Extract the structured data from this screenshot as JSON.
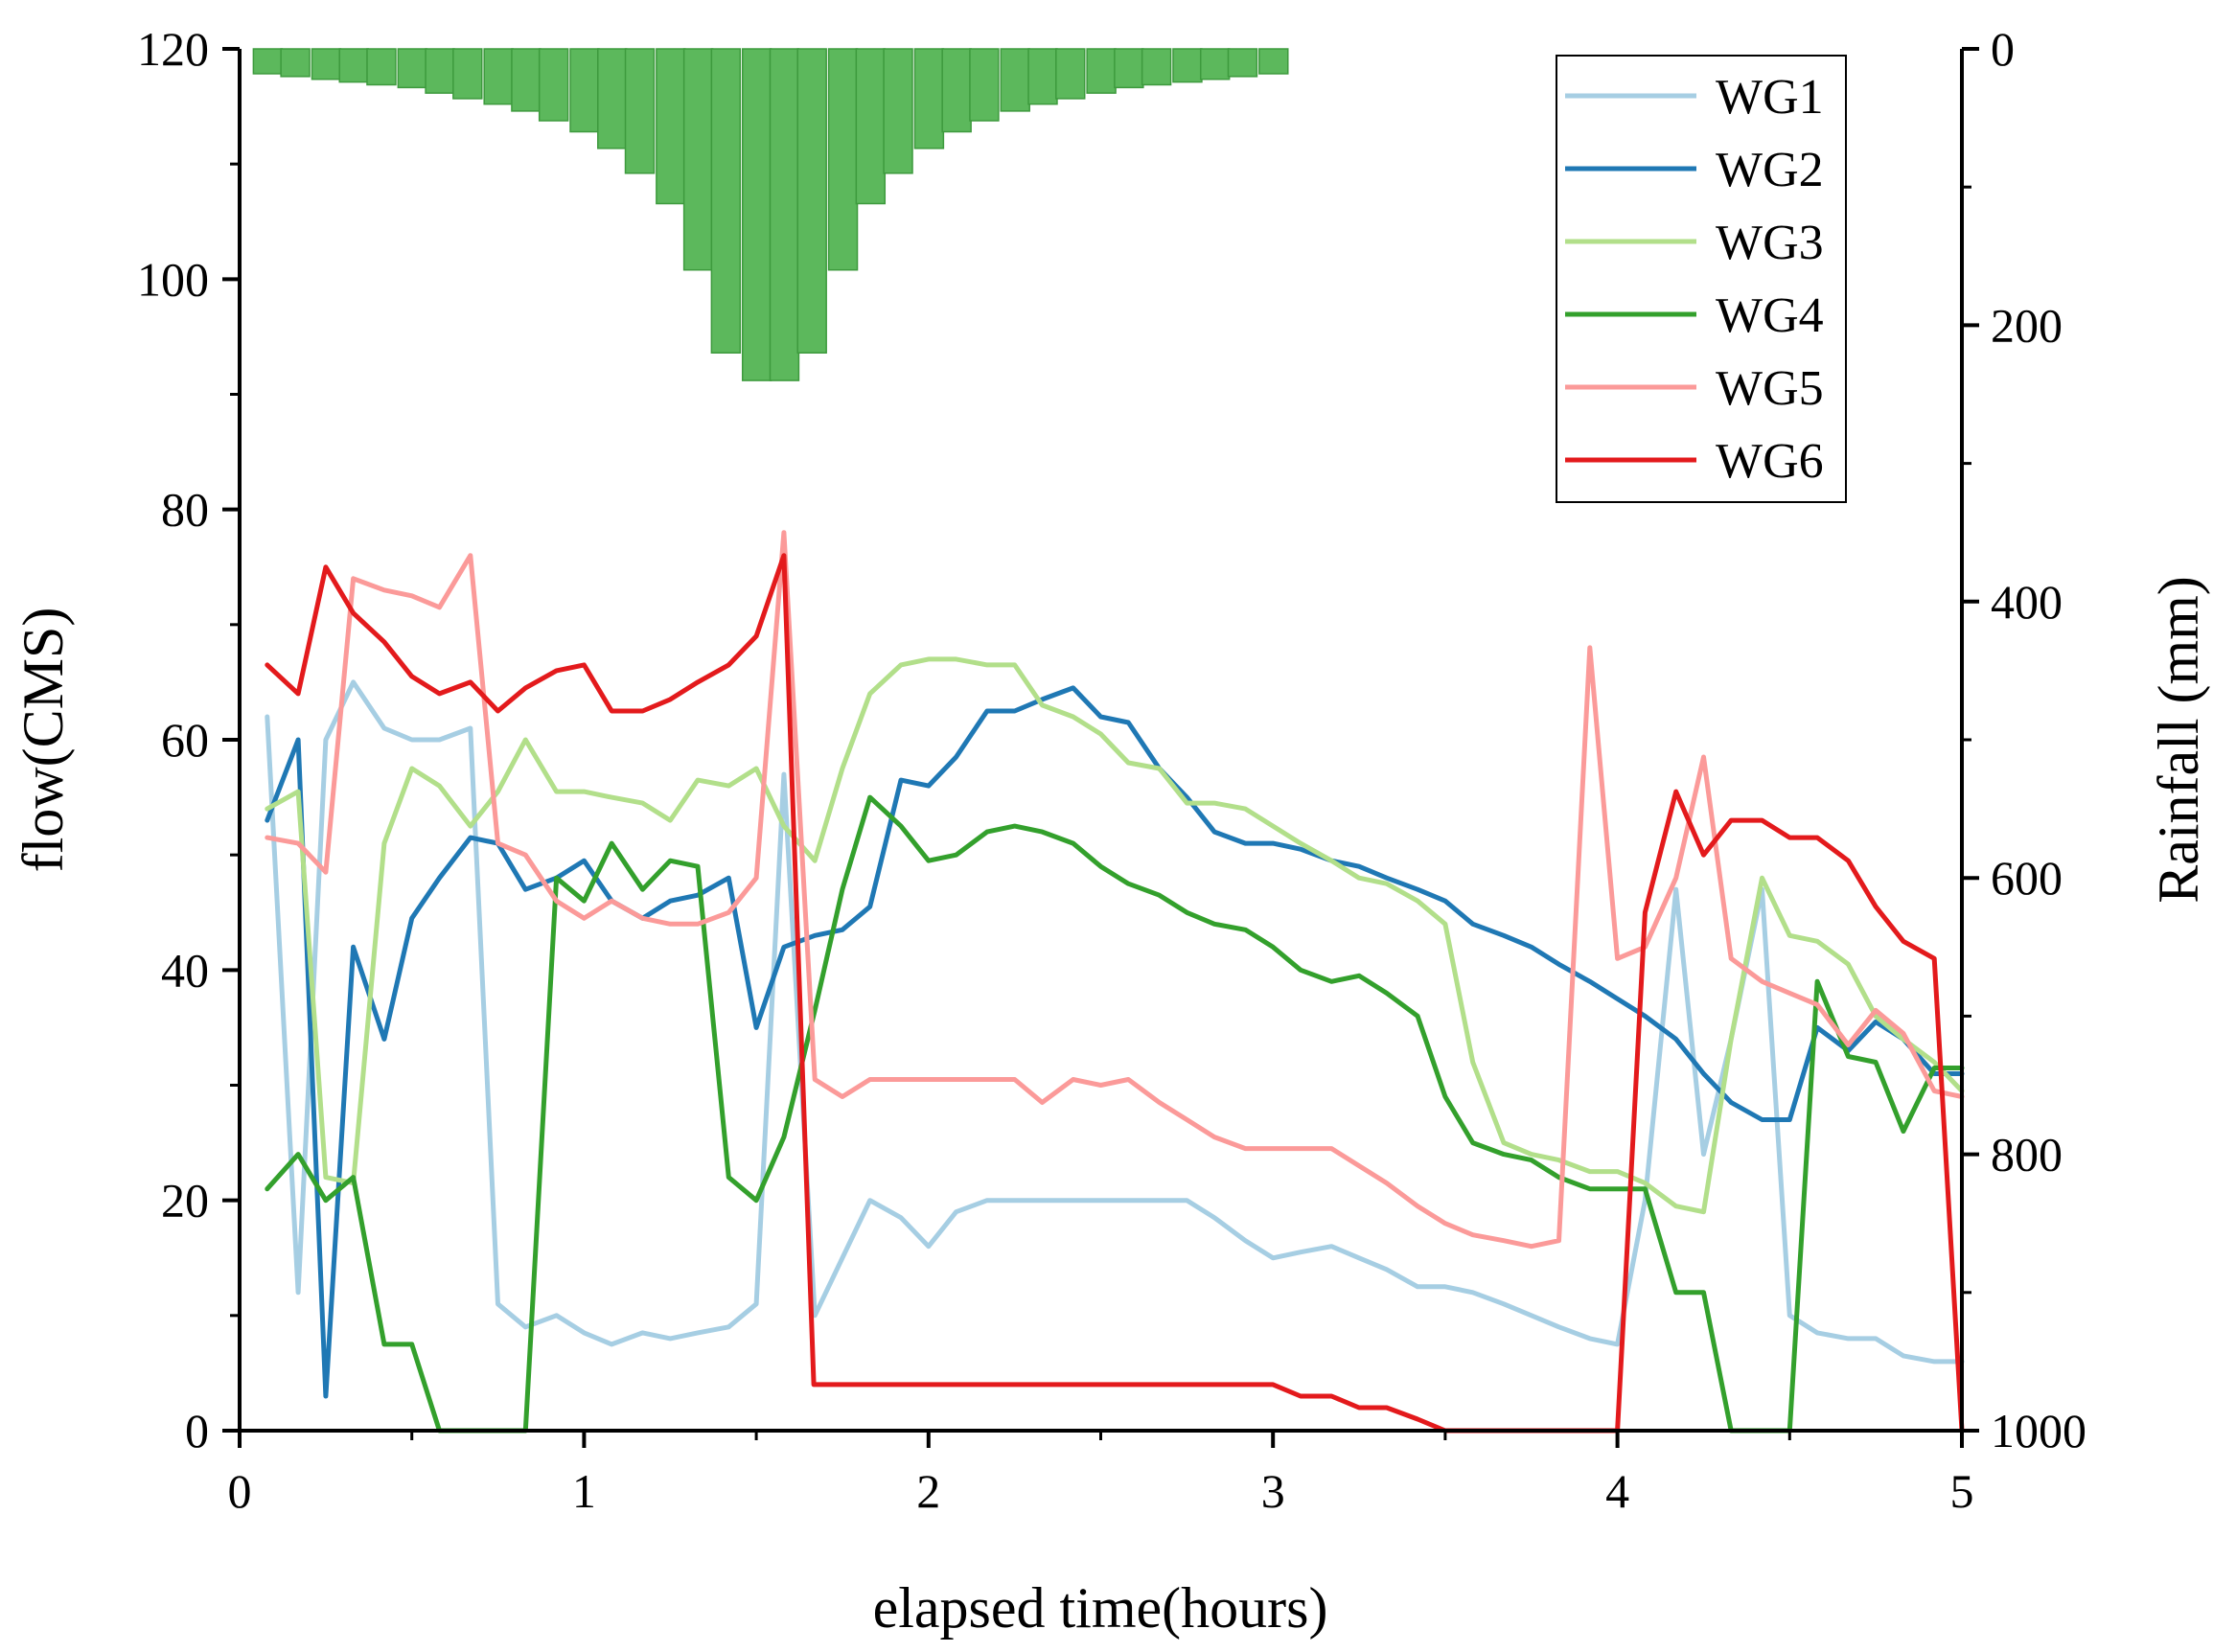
{
  "chart_data": {
    "type": "line",
    "title": "",
    "xlabel": "elapsed time(hours)",
    "ylabel": "flow(CMS)",
    "y2label": "Rainfall (mm)",
    "xlim": [
      0,
      5
    ],
    "ylim": [
      0,
      120
    ],
    "y2lim": [
      0,
      1000
    ],
    "y2_inverted": true,
    "xticks": [
      0,
      1,
      2,
      3,
      4,
      5
    ],
    "yticks": [
      0,
      20,
      40,
      60,
      80,
      100,
      120
    ],
    "y2ticks": [
      0,
      200,
      400,
      600,
      800,
      1000
    ],
    "legend_position": "top-right",
    "series": [
      {
        "name": "WG1",
        "color": "#a6cee3",
        "x": [
          0.08,
          0.17,
          0.25,
          0.33,
          0.42,
          0.5,
          0.58,
          0.67,
          0.75,
          0.83,
          0.92,
          1.0,
          1.08,
          1.17,
          1.25,
          1.33,
          1.42,
          1.5,
          1.58,
          1.67,
          1.75,
          1.83,
          1.92,
          2.0,
          2.08,
          2.17,
          2.25,
          2.33,
          2.42,
          2.5,
          2.58,
          2.67,
          2.75,
          2.83,
          2.92,
          3.0,
          3.08,
          3.17,
          3.25,
          3.33,
          3.42,
          3.5,
          3.58,
          3.67,
          3.75,
          3.83,
          3.92,
          4.0,
          4.08,
          4.17,
          4.25,
          4.33,
          4.42,
          4.5,
          4.58,
          4.67,
          4.75,
          4.83,
          4.92,
          5.0
        ],
        "y": [
          62,
          12,
          60,
          65,
          61,
          60,
          60,
          61,
          11,
          9,
          10,
          8.5,
          7.5,
          8.5,
          8,
          8.5,
          9,
          11,
          57,
          10,
          15,
          20,
          18.5,
          16,
          19,
          20,
          20,
          20,
          20,
          20,
          20,
          20,
          20,
          18.5,
          16.5,
          15,
          15.5,
          16,
          15,
          14,
          12.5,
          12.5,
          12,
          11,
          10,
          9,
          8,
          7.5,
          20,
          47,
          24,
          34,
          47,
          10,
          8.5,
          8,
          8,
          6.5,
          6,
          6
        ]
      },
      {
        "name": "WG2",
        "color": "#1f78b4",
        "x": [
          0.08,
          0.17,
          0.25,
          0.33,
          0.42,
          0.5,
          0.58,
          0.67,
          0.75,
          0.83,
          0.92,
          1.0,
          1.08,
          1.17,
          1.25,
          1.33,
          1.42,
          1.5,
          1.58,
          1.67,
          1.75,
          1.83,
          1.92,
          2.0,
          2.08,
          2.17,
          2.25,
          2.33,
          2.42,
          2.5,
          2.58,
          2.67,
          2.75,
          2.83,
          2.92,
          3.0,
          3.08,
          3.17,
          3.25,
          3.33,
          3.42,
          3.5,
          3.58,
          3.67,
          3.75,
          3.83,
          3.92,
          4.0,
          4.08,
          4.17,
          4.25,
          4.33,
          4.42,
          4.5,
          4.58,
          4.67,
          4.75,
          4.83,
          4.92,
          5.0
        ],
        "y": [
          53,
          60,
          3,
          42,
          34,
          44.5,
          48,
          51.5,
          51,
          47,
          48,
          49.5,
          46,
          44.5,
          46,
          46.5,
          48,
          35,
          42,
          43,
          43.5,
          45.5,
          56.5,
          56,
          58.5,
          62.5,
          62.5,
          63.5,
          64.5,
          62,
          61.5,
          57.5,
          55,
          52,
          51,
          51,
          50.5,
          49.5,
          49,
          48,
          47,
          46,
          44,
          43,
          42,
          40.5,
          39,
          37.5,
          36,
          34,
          31,
          28.5,
          27,
          27,
          35,
          33,
          35.5,
          34,
          31,
          31
        ]
      },
      {
        "name": "WG3",
        "color": "#b2df8a",
        "x": [
          0.08,
          0.17,
          0.25,
          0.33,
          0.42,
          0.5,
          0.58,
          0.67,
          0.75,
          0.83,
          0.92,
          1.0,
          1.08,
          1.17,
          1.25,
          1.33,
          1.42,
          1.5,
          1.58,
          1.67,
          1.75,
          1.83,
          1.92,
          2.0,
          2.08,
          2.17,
          2.25,
          2.33,
          2.42,
          2.5,
          2.58,
          2.67,
          2.75,
          2.83,
          2.92,
          3.0,
          3.08,
          3.17,
          3.25,
          3.33,
          3.42,
          3.5,
          3.58,
          3.67,
          3.75,
          3.83,
          3.92,
          4.0,
          4.08,
          4.17,
          4.25,
          4.33,
          4.42,
          4.5,
          4.58,
          4.67,
          4.75,
          4.83,
          4.92,
          5.0
        ],
        "y": [
          54,
          55.5,
          22,
          21.5,
          51,
          57.5,
          56,
          52.5,
          55.5,
          60,
          55.5,
          55.5,
          55,
          54.5,
          53,
          56.5,
          56,
          57.5,
          52.5,
          49.5,
          57.5,
          64,
          66.5,
          67,
          67,
          66.5,
          66.5,
          63,
          62,
          60.5,
          58,
          57.5,
          54.5,
          54.5,
          54,
          52.5,
          51,
          49.5,
          48,
          47.5,
          46,
          44,
          32,
          25,
          24,
          23.5,
          22.5,
          22.5,
          21.5,
          19.5,
          19,
          34,
          48,
          43,
          42.5,
          40.5,
          36,
          34,
          32,
          29.5
        ]
      },
      {
        "name": "WG4",
        "color": "#33a02c",
        "x": [
          0.08,
          0.17,
          0.25,
          0.33,
          0.42,
          0.5,
          0.58,
          0.67,
          0.75,
          0.83,
          0.92,
          1.0,
          1.08,
          1.17,
          1.25,
          1.33,
          1.42,
          1.5,
          1.58,
          1.67,
          1.75,
          1.83,
          1.92,
          2.0,
          2.08,
          2.17,
          2.25,
          2.33,
          2.42,
          2.5,
          2.58,
          2.67,
          2.75,
          2.83,
          2.92,
          3.0,
          3.08,
          3.17,
          3.25,
          3.33,
          3.42,
          3.5,
          3.58,
          3.67,
          3.75,
          3.83,
          3.92,
          4.0,
          4.08,
          4.17,
          4.25,
          4.33,
          4.42,
          4.5,
          4.58,
          4.67,
          4.75,
          4.83,
          4.92,
          5.0
        ],
        "y": [
          21,
          24,
          20,
          22,
          7.5,
          7.5,
          0,
          0,
          0,
          0,
          48,
          46,
          51,
          47,
          49.5,
          49,
          22,
          20,
          25.5,
          36.5,
          47,
          55,
          52.5,
          49.5,
          50,
          52,
          52.5,
          52,
          51,
          49,
          47.5,
          46.5,
          45,
          44,
          43.5,
          42,
          40,
          39,
          39.5,
          38,
          36,
          29,
          25,
          24,
          23.5,
          22,
          21,
          21,
          21,
          12,
          12,
          0,
          0,
          0,
          39,
          32.5,
          32,
          26,
          31.5,
          31.5
        ]
      },
      {
        "name": "WG5",
        "color": "#fb9a99",
        "x": [
          0.08,
          0.17,
          0.25,
          0.33,
          0.42,
          0.5,
          0.58,
          0.67,
          0.75,
          0.83,
          0.92,
          1.0,
          1.08,
          1.17,
          1.25,
          1.33,
          1.42,
          1.5,
          1.58,
          1.67,
          1.75,
          1.83,
          1.92,
          2.0,
          2.08,
          2.17,
          2.25,
          2.33,
          2.42,
          2.5,
          2.58,
          2.67,
          2.75,
          2.83,
          2.92,
          3.0,
          3.08,
          3.17,
          3.25,
          3.33,
          3.42,
          3.5,
          3.58,
          3.67,
          3.75,
          3.83,
          3.92,
          4.0,
          4.08,
          4.17,
          4.25,
          4.33,
          4.42,
          4.5,
          4.58,
          4.67,
          4.75,
          4.83,
          4.92,
          5.0
        ],
        "y": [
          51.5,
          51,
          48.5,
          74,
          73,
          72.5,
          71.5,
          76,
          51,
          50,
          46,
          44.5,
          46,
          44.5,
          44,
          44,
          45,
          48,
          78,
          30.5,
          29,
          30.5,
          30.5,
          30.5,
          30.5,
          30.5,
          30.5,
          28.5,
          30.5,
          30,
          30.5,
          28.5,
          27,
          25.5,
          24.5,
          24.5,
          24.5,
          24.5,
          23,
          21.5,
          19.5,
          18,
          17,
          16.5,
          16,
          16.5,
          68,
          41,
          42,
          48,
          58.5,
          41,
          39,
          38,
          37,
          33.5,
          36.5,
          34.5,
          29.5,
          29
        ]
      },
      {
        "name": "WG6",
        "color": "#e31a1c",
        "x": [
          0.08,
          0.17,
          0.25,
          0.33,
          0.42,
          0.5,
          0.58,
          0.67,
          0.75,
          0.83,
          0.92,
          1.0,
          1.08,
          1.17,
          1.25,
          1.33,
          1.42,
          1.5,
          1.58,
          1.667,
          1.75,
          1.83,
          1.92,
          2.0,
          2.08,
          2.17,
          2.25,
          2.33,
          2.42,
          2.5,
          2.58,
          2.67,
          2.75,
          2.83,
          2.92,
          3.0,
          3.08,
          3.17,
          3.25,
          3.33,
          3.42,
          3.5,
          3.58,
          3.67,
          3.75,
          3.83,
          3.92,
          4.0,
          4.08,
          4.17,
          4.25,
          4.33,
          4.42,
          4.5,
          4.58,
          4.67,
          4.75,
          4.83,
          4.92,
          5.0
        ],
        "y": [
          66.5,
          64,
          75,
          71,
          68.5,
          65.5,
          64,
          65,
          62.5,
          64.5,
          66,
          66.5,
          62.5,
          62.5,
          63.5,
          65,
          66.5,
          69,
          76,
          4,
          4,
          4,
          4,
          4,
          4,
          4,
          4,
          4,
          4,
          4,
          4,
          4,
          4,
          4,
          4,
          4,
          3,
          3,
          2,
          2,
          1,
          0,
          0,
          0,
          0,
          0,
          0,
          0,
          45,
          55.5,
          50,
          53,
          53,
          51.5,
          51.5,
          49.5,
          45.5,
          42.5,
          41,
          0
        ]
      }
    ],
    "rainfall": {
      "name": "Rainfall",
      "color": "#5cb85c",
      "axis": "right",
      "x_start": [
        0.04,
        0.12,
        0.21,
        0.29,
        0.37,
        0.46,
        0.54,
        0.62,
        0.71,
        0.79,
        0.87,
        0.96,
        1.04,
        1.12,
        1.21,
        1.29,
        1.37,
        1.46,
        1.54,
        1.62,
        1.71,
        1.79,
        1.87,
        1.96,
        2.04,
        2.12,
        2.21,
        2.29,
        2.37,
        2.46,
        2.54,
        2.62,
        2.71,
        2.79,
        2.87,
        2.96
      ],
      "values": [
        18,
        20,
        22,
        24,
        26,
        28,
        32,
        36,
        40,
        45,
        52,
        60,
        72,
        90,
        112,
        160,
        220,
        240,
        240,
        220,
        160,
        112,
        90,
        72,
        60,
        52,
        45,
        40,
        36,
        32,
        28,
        26,
        24,
        22,
        20,
        18
      ]
    }
  }
}
